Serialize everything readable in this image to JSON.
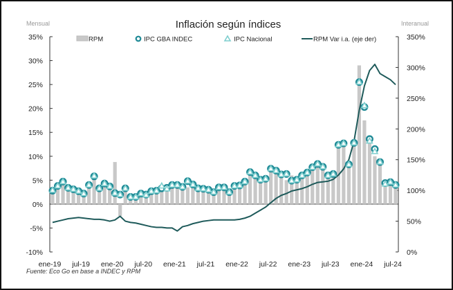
{
  "chart_data": {
    "type": "bar",
    "title": "Inflación según índices",
    "left_axis_label": "Mensual",
    "right_axis_label": "Interanual",
    "source": "Fuente: Eco Go en base a INDEC y RPM",
    "ylim": [
      -10,
      35
    ],
    "y_ticks": [
      "35%",
      "30%",
      "25%",
      "20%",
      "15%",
      "10%",
      "5%",
      "0%",
      "-5%",
      "-10%"
    ],
    "y_tick_values": [
      35,
      30,
      25,
      20,
      15,
      10,
      5,
      0,
      -5,
      -10
    ],
    "y2lim": [
      0,
      350
    ],
    "y2_ticks": [
      "350%",
      "300%",
      "250%",
      "200%",
      "150%",
      "100%",
      "50%",
      "0%"
    ],
    "y2_tick_values": [
      350,
      300,
      250,
      200,
      150,
      100,
      50,
      0
    ],
    "x_ticks": [
      "ene-19",
      "jul-19",
      "ene-20",
      "jul-20",
      "ene-21",
      "jul-21",
      "ene-22",
      "jul-22",
      "ene-23",
      "jul-23",
      "ene-24",
      "jul-24"
    ],
    "x_tick_index": [
      0,
      6,
      12,
      18,
      24,
      30,
      36,
      42,
      48,
      54,
      60,
      66
    ],
    "legend": [
      {
        "name": "RPM",
        "kind": "bar",
        "color": "#c8c8c8"
      },
      {
        "name": "IPC GBA INDEC",
        "kind": "circle",
        "color": "#1f7f8f"
      },
      {
        "name": "IPC Nacional",
        "kind": "triangle",
        "color": "#7fcfcf"
      },
      {
        "name": "RPM Var i.a. (eje der)",
        "kind": "line",
        "color": "#1e5a5a"
      }
    ],
    "series": [
      {
        "name": "RPM",
        "axis": "left",
        "values": [
          2.5,
          3.5,
          4.5,
          3.0,
          3.0,
          2.5,
          2.0,
          3.5,
          5.5,
          3.0,
          4.0,
          3.5,
          8.8,
          -2.5,
          3.0,
          1.5,
          1.5,
          2.0,
          2.0,
          3.0,
          3.0,
          3.0,
          3.5,
          4.0,
          4.5,
          3.5,
          3.5,
          3.5,
          3.0,
          3.0,
          3.0,
          3.0,
          3.5,
          4.0,
          2.5,
          4.0,
          4.0,
          4.5,
          6.5,
          6.0,
          5.0,
          5.0,
          7.0,
          7.0,
          6.5,
          5.0,
          6.0,
          5.0,
          6.0,
          6.0,
          7.5,
          8.0,
          8.0,
          6.0,
          6.0,
          12.0,
          12.0,
          8.0,
          13.0,
          29.0,
          17.5,
          13.0,
          10.0,
          9.0,
          4.5,
          4.5,
          4.0
        ]
      },
      {
        "name": "IPC GBA INDEC",
        "axis": "left",
        "values": [
          2.8,
          3.8,
          4.7,
          3.4,
          3.1,
          2.7,
          2.2,
          4.0,
          5.8,
          3.3,
          4.3,
          3.7,
          2.3,
          2.0,
          3.3,
          1.5,
          1.5,
          2.2,
          2.0,
          2.7,
          2.8,
          3.3,
          3.4,
          4.0,
          4.0,
          3.6,
          4.8,
          4.1,
          3.3,
          3.2,
          3.0,
          2.5,
          3.5,
          3.5,
          2.5,
          3.8,
          3.9,
          4.7,
          6.7,
          6.0,
          5.1,
          5.3,
          7.4,
          7.0,
          6.2,
          6.3,
          4.9,
          5.1,
          6.0,
          6.6,
          7.7,
          8.4,
          7.8,
          6.0,
          6.3,
          12.4,
          12.7,
          8.3,
          12.8,
          25.5,
          20.3,
          13.6,
          11.5,
          8.8,
          4.4,
          4.6,
          4.0
        ]
      },
      {
        "name": "IPC Nacional",
        "axis": "left",
        "values": [
          2.9,
          3.8,
          4.7,
          3.4,
          3.1,
          2.7,
          2.2,
          4.0,
          5.9,
          3.3,
          4.3,
          3.7,
          2.3,
          2.0,
          3.3,
          1.5,
          1.5,
          2.2,
          1.9,
          2.7,
          2.8,
          3.8,
          3.2,
          4.0,
          4.0,
          3.6,
          4.8,
          4.1,
          3.3,
          3.2,
          3.0,
          2.5,
          3.5,
          3.5,
          2.5,
          3.8,
          3.9,
          4.7,
          6.7,
          6.0,
          5.1,
          5.3,
          7.4,
          7.0,
          6.2,
          6.3,
          4.9,
          5.1,
          6.0,
          6.6,
          7.7,
          8.4,
          7.8,
          6.0,
          6.3,
          12.4,
          12.7,
          8.3,
          12.8,
          25.5,
          20.6,
          13.2,
          11.0,
          8.8,
          4.2,
          4.6,
          4.0
        ]
      },
      {
        "name": "RPM Var i.a. (eje der)",
        "axis": "right",
        "values": [
          48,
          50,
          52,
          54,
          55,
          56,
          55,
          54,
          53,
          53,
          52,
          50,
          52,
          58,
          50,
          48,
          47,
          45,
          43,
          41,
          40,
          40,
          39,
          39,
          34,
          41,
          43,
          46,
          48,
          50,
          51,
          52,
          52,
          52,
          52,
          52,
          53,
          55,
          58,
          63,
          68,
          73,
          80,
          87,
          92,
          95,
          99,
          101,
          103,
          106,
          110,
          113,
          114,
          115,
          118,
          125,
          135,
          150,
          180,
          230,
          270,
          295,
          305,
          290,
          285,
          280,
          272
        ]
      }
    ]
  }
}
